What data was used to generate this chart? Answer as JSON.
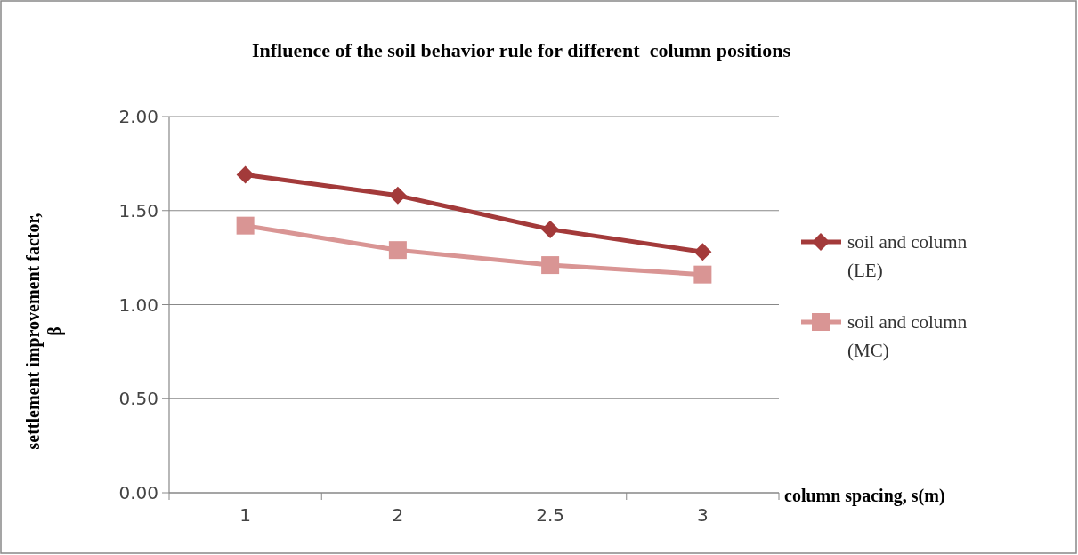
{
  "chart_data": {
    "type": "line",
    "title": "Influence of the soil behavior rule for different  column positions",
    "xlabel": "column spacing, s(m)",
    "ylabel": "settlement improvement factor, β",
    "categories": [
      "1",
      "2",
      "2.5",
      "3"
    ],
    "series": [
      {
        "name": "soil and column (LE)",
        "color": "#a33a3a",
        "marker": "diamond",
        "values": [
          1.69,
          1.58,
          1.4,
          1.28
        ]
      },
      {
        "name": "soil and column (MC)",
        "color": "#d99594",
        "marker": "square",
        "values": [
          1.42,
          1.29,
          1.21,
          1.16
        ]
      }
    ],
    "ylim": [
      0,
      2
    ],
    "yticks": [
      {
        "value": 0,
        "label": "0.00"
      },
      {
        "value": 0.5,
        "label": "0.50"
      },
      {
        "value": 1,
        "label": "1.00"
      },
      {
        "value": 1.5,
        "label": "1.50"
      },
      {
        "value": 2,
        "label": "2.00"
      }
    ],
    "grid": "y",
    "legend": "right"
  }
}
